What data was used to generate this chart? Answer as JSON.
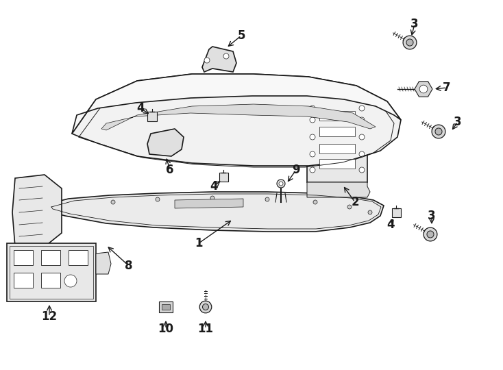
{
  "bg_color": "#ffffff",
  "line_color": "#1a1a1a",
  "fig_width": 7.34,
  "fig_height": 5.4,
  "dpi": 100,
  "bumper_fill": "#f2f2f2",
  "bumper_inner_fill": "#e0e0e0",
  "part_fill": "#e8e8e8",
  "part_fill2": "#d8d8d8"
}
